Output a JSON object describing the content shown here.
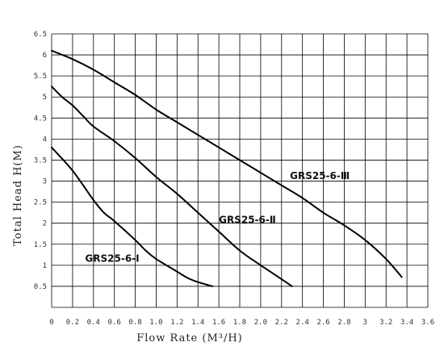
{
  "chart_data": {
    "type": "line",
    "xlabel": "Flow Rate (M³/H)",
    "ylabel": "Total Head H(M)",
    "xlim": [
      0,
      3.6
    ],
    "ylim": [
      0,
      6.5
    ],
    "x_ticks": [
      "0",
      "0.2",
      "0.4",
      "0.6",
      "0.8",
      "1.0",
      "1.2",
      "1.4",
      "1.6",
      "1.8",
      "2.0",
      "2.2",
      "2.4",
      "2.6",
      "2.8",
      "3",
      "3.2",
      "3.4",
      "3.6"
    ],
    "y_ticks": [
      "0.5",
      "1",
      "1.5",
      "2",
      "2.5",
      "3",
      "3.5",
      "4",
      "4.5",
      "5",
      "5.5",
      "6",
      "6.5"
    ],
    "grid": true,
    "series": [
      {
        "name": "GRS25-6-Ⅰ",
        "x": [
          0,
          0.2,
          0.4,
          0.5,
          0.6,
          0.8,
          0.9,
          1.0,
          1.2,
          1.3,
          1.4,
          1.54
        ],
        "y": [
          3.8,
          3.25,
          2.55,
          2.25,
          2.05,
          1.6,
          1.35,
          1.15,
          0.85,
          0.7,
          0.6,
          0.5
        ]
      },
      {
        "name": "GRS25-6-Ⅱ",
        "x": [
          0,
          0.1,
          0.2,
          0.3,
          0.4,
          0.6,
          0.8,
          1.0,
          1.2,
          1.4,
          1.6,
          1.8,
          2.0,
          2.2,
          2.3
        ],
        "y": [
          5.25,
          5.0,
          4.8,
          4.55,
          4.3,
          3.95,
          3.55,
          3.1,
          2.7,
          2.25,
          1.8,
          1.35,
          1.0,
          0.67,
          0.5
        ]
      },
      {
        "name": "GRS25-6-Ⅲ",
        "x": [
          0,
          0.2,
          0.4,
          0.6,
          0.8,
          1.0,
          1.2,
          1.4,
          1.6,
          1.8,
          2.0,
          2.2,
          2.4,
          2.6,
          2.8,
          3.0,
          3.2,
          3.35
        ],
        "y": [
          6.1,
          5.9,
          5.65,
          5.35,
          5.05,
          4.7,
          4.4,
          4.1,
          3.8,
          3.5,
          3.2,
          2.9,
          2.6,
          2.25,
          1.95,
          1.6,
          1.15,
          0.72
        ]
      }
    ]
  }
}
